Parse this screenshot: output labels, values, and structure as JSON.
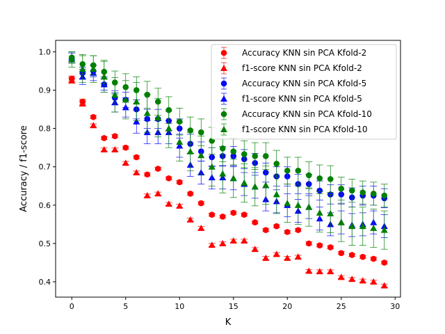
{
  "chart_data": {
    "type": "scatter",
    "xlabel": "K",
    "ylabel": "Accuracy / f1-score",
    "xlim": [
      -1.5,
      30.5
    ],
    "ylim": [
      0.36,
      1.03
    ],
    "xticks": [
      0,
      5,
      10,
      15,
      20,
      25,
      30
    ],
    "yticks": [
      0.4,
      0.5,
      0.6,
      0.7,
      0.8,
      0.9,
      1.0
    ],
    "grid": false,
    "legend_position": "top-right",
    "x": [
      0,
      1,
      2,
      3,
      4,
      5,
      6,
      7,
      8,
      9,
      10,
      11,
      12,
      13,
      14,
      15,
      16,
      17,
      18,
      19,
      20,
      21,
      22,
      23,
      24,
      25,
      26,
      27,
      28,
      29
    ],
    "series": [
      {
        "name": "Accuracy KNN sin PCA Kfold-2",
        "marker": "circle",
        "color": "#ff0000",
        "values": [
          0.93,
          0.87,
          0.83,
          0.775,
          0.78,
          0.75,
          0.725,
          0.68,
          0.695,
          0.67,
          0.66,
          0.63,
          0.605,
          0.575,
          0.57,
          0.58,
          0.575,
          0.555,
          0.535,
          0.545,
          0.53,
          0.535,
          0.5,
          0.495,
          0.49,
          0.475,
          0.47,
          0.465,
          0.46,
          0.45
        ],
        "errors": [
          0.007,
          0.007,
          0.004,
          0.004,
          0.004,
          0.004,
          0.004,
          0.004,
          0.004,
          0.004,
          0.004,
          0.004,
          0.004,
          0.004,
          0.004,
          0.004,
          0.004,
          0.004,
          0.004,
          0.004,
          0.004,
          0.004,
          0.004,
          0.004,
          0.004,
          0.004,
          0.004,
          0.004,
          0.004,
          0.004
        ]
      },
      {
        "name": "f1-score KNN sin PCA Kfold-2",
        "marker": "triangle",
        "color": "#ff0000",
        "values": [
          0.925,
          0.865,
          0.808,
          0.745,
          0.745,
          0.71,
          0.685,
          0.625,
          0.63,
          0.603,
          0.598,
          0.562,
          0.54,
          0.496,
          0.5,
          0.507,
          0.507,
          0.485,
          0.462,
          0.472,
          0.462,
          0.465,
          0.428,
          0.427,
          0.427,
          0.412,
          0.407,
          0.403,
          0.4,
          0.39
        ],
        "errors": [
          0.007,
          0.007,
          0.004,
          0.004,
          0.004,
          0.004,
          0.004,
          0.004,
          0.004,
          0.004,
          0.004,
          0.004,
          0.004,
          0.004,
          0.004,
          0.004,
          0.004,
          0.004,
          0.004,
          0.004,
          0.004,
          0.004,
          0.004,
          0.004,
          0.004,
          0.004,
          0.004,
          0.004,
          0.004,
          0.004
        ]
      },
      {
        "name": "Accuracy KNN sin PCA Kfold-5",
        "marker": "circle",
        "color": "#0000ff",
        "values": [
          0.985,
          0.945,
          0.95,
          0.915,
          0.88,
          0.875,
          0.85,
          0.825,
          0.825,
          0.82,
          0.8,
          0.76,
          0.74,
          0.725,
          0.728,
          0.728,
          0.72,
          0.71,
          0.685,
          0.675,
          0.675,
          0.655,
          0.655,
          0.638,
          0.628,
          0.628,
          0.62,
          0.625,
          0.625,
          0.618
        ],
        "errors": [
          0.012,
          0.015,
          0.015,
          0.015,
          0.018,
          0.02,
          0.025,
          0.025,
          0.025,
          0.025,
          0.025,
          0.025,
          0.025,
          0.025,
          0.025,
          0.025,
          0.025,
          0.025,
          0.025,
          0.025,
          0.025,
          0.025,
          0.025,
          0.025,
          0.025,
          0.025,
          0.025,
          0.025,
          0.025,
          0.025
        ]
      },
      {
        "name": "f1-score KNN sin PCA Kfold-5",
        "marker": "triangle",
        "color": "#0000ff",
        "values": [
          0.985,
          0.935,
          0.945,
          0.915,
          0.868,
          0.855,
          0.818,
          0.79,
          0.79,
          0.79,
          0.755,
          0.705,
          0.685,
          0.672,
          0.672,
          0.67,
          0.655,
          0.648,
          0.615,
          0.61,
          0.6,
          0.585,
          0.595,
          0.565,
          0.55,
          0.555,
          0.548,
          0.55,
          0.555,
          0.545
        ],
        "errors": [
          0.015,
          0.02,
          0.02,
          0.02,
          0.025,
          0.025,
          0.03,
          0.03,
          0.03,
          0.03,
          0.03,
          0.03,
          0.03,
          0.03,
          0.03,
          0.03,
          0.03,
          0.03,
          0.03,
          0.03,
          0.03,
          0.03,
          0.03,
          0.03,
          0.03,
          0.03,
          0.03,
          0.03,
          0.03,
          0.03
        ]
      },
      {
        "name": "Accuracy KNN sin PCA Kfold-10",
        "marker": "circle",
        "color": "#008000",
        "values": [
          0.985,
          0.968,
          0.965,
          0.948,
          0.92,
          0.908,
          0.9,
          0.888,
          0.87,
          0.848,
          0.818,
          0.795,
          0.79,
          0.768,
          0.748,
          0.74,
          0.733,
          0.728,
          0.728,
          0.708,
          0.69,
          0.69,
          0.678,
          0.67,
          0.668,
          0.643,
          0.638,
          0.633,
          0.63,
          0.625
        ],
        "errors": [
          0.015,
          0.025,
          0.025,
          0.03,
          0.03,
          0.035,
          0.035,
          0.035,
          0.035,
          0.035,
          0.035,
          0.035,
          0.035,
          0.035,
          0.035,
          0.035,
          0.035,
          0.035,
          0.035,
          0.035,
          0.035,
          0.035,
          0.035,
          0.035,
          0.035,
          0.03,
          0.03,
          0.03,
          0.03,
          0.03
        ]
      },
      {
        "name": "f1-score KNN sin PCA Kfold-10",
        "marker": "triangle",
        "color": "#008000",
        "values": [
          0.98,
          0.955,
          0.955,
          0.935,
          0.888,
          0.875,
          0.87,
          0.84,
          0.828,
          0.8,
          0.765,
          0.74,
          0.73,
          0.7,
          0.682,
          0.67,
          0.658,
          0.648,
          0.652,
          0.628,
          0.605,
          0.6,
          0.595,
          0.58,
          0.578,
          0.555,
          0.545,
          0.545,
          0.54,
          0.535
        ],
        "errors": [
          0.02,
          0.035,
          0.035,
          0.04,
          0.045,
          0.05,
          0.05,
          0.05,
          0.05,
          0.05,
          0.05,
          0.05,
          0.05,
          0.05,
          0.05,
          0.05,
          0.05,
          0.05,
          0.05,
          0.05,
          0.05,
          0.05,
          0.05,
          0.05,
          0.05,
          0.05,
          0.05,
          0.05,
          0.05,
          0.05
        ]
      }
    ]
  }
}
